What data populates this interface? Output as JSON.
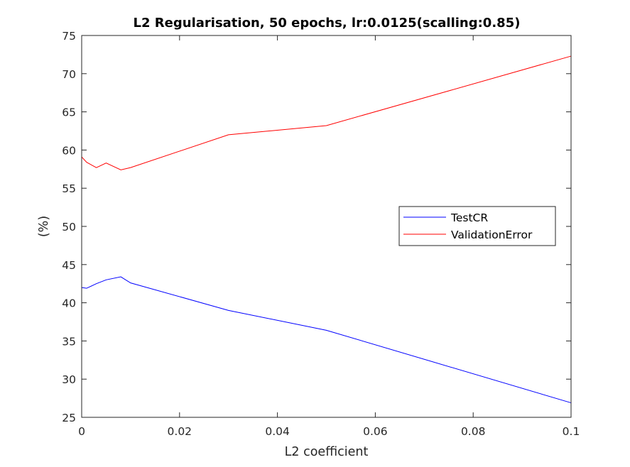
{
  "chart_data": {
    "type": "line",
    "title": "L2 Regularisation, 50 epochs, lr:0.0125(scalling:0.85)",
    "xlabel": "L2 coefficient",
    "ylabel": "(%)",
    "xlim": [
      0,
      0.1
    ],
    "ylim": [
      25,
      75
    ],
    "xticks": [
      0,
      0.02,
      0.04,
      0.06,
      0.08,
      0.1
    ],
    "xtick_labels": [
      "0",
      "0.02",
      "0.04",
      "0.06",
      "0.08",
      "0.1"
    ],
    "yticks": [
      25,
      30,
      35,
      40,
      45,
      50,
      55,
      60,
      65,
      70,
      75
    ],
    "ytick_labels": [
      "25",
      "30",
      "35",
      "40",
      "45",
      "50",
      "55",
      "60",
      "65",
      "70",
      "75"
    ],
    "grid": false,
    "legend_position": "center-right",
    "x": [
      0,
      0.001,
      0.003,
      0.005,
      0.008,
      0.01,
      0.03,
      0.05,
      0.1
    ],
    "series": [
      {
        "name": "TestCR",
        "color": "#0000ff",
        "values": [
          42.0,
          41.9,
          42.5,
          43.0,
          43.4,
          42.6,
          39.0,
          36.4,
          26.9
        ]
      },
      {
        "name": "ValidationError",
        "color": "#ff0000",
        "values": [
          59.1,
          58.4,
          57.7,
          58.3,
          57.4,
          57.7,
          62.0,
          63.2,
          72.3
        ]
      }
    ]
  }
}
